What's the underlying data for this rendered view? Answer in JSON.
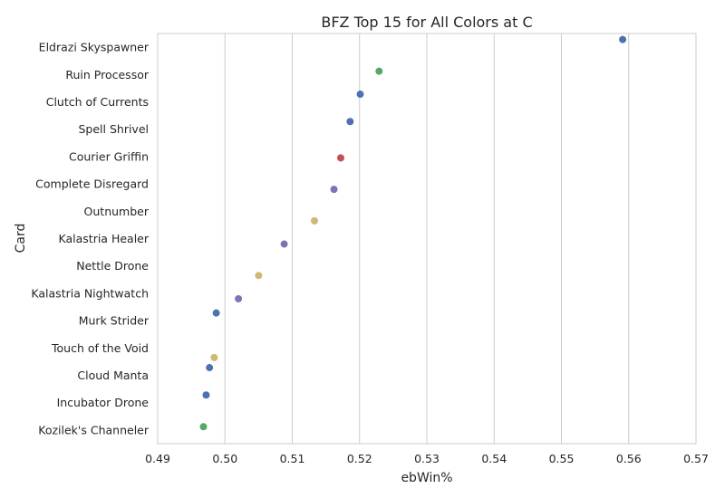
{
  "chart_data": {
    "type": "scatter",
    "title": "BFZ Top 15 for All Colors at C",
    "xlabel": "ebWin%",
    "ylabel": "Card",
    "xlim": [
      0.49,
      0.57
    ],
    "xticks": [
      "0.49",
      "0.50",
      "0.51",
      "0.52",
      "0.53",
      "0.54",
      "0.55",
      "0.56",
      "0.57"
    ],
    "grid": "vertical",
    "colors": {
      "blue": "#4c72b0",
      "green": "#55a868",
      "red": "#c44e52",
      "purple": "#8172b2",
      "yellow": "#ccb974"
    },
    "points": [
      {
        "card": "Eldrazi Skyspawner",
        "value": 0.5591,
        "color": "blue",
        "offset": -0.28
      },
      {
        "card": "Ruin Processor",
        "value": 0.5229,
        "color": "green",
        "offset": -0.12
      },
      {
        "card": "Clutch of Currents",
        "value": 0.5201,
        "color": "blue",
        "offset": -0.28
      },
      {
        "card": "Spell Shrivel",
        "value": 0.5186,
        "color": "blue",
        "offset": -0.28
      },
      {
        "card": "Courier Griffin",
        "value": 0.5172,
        "color": "red",
        "offset": 0.05
      },
      {
        "card": "Complete Disregard",
        "value": 0.5162,
        "color": "purple",
        "offset": 0.2
      },
      {
        "card": "Outnumber",
        "value": 0.5133,
        "color": "yellow",
        "offset": 0.35
      },
      {
        "card": "Kalastria Healer",
        "value": 0.5088,
        "color": "purple",
        "offset": 0.2
      },
      {
        "card": "Nettle Drone",
        "value": 0.505,
        "color": "yellow",
        "offset": 0.35
      },
      {
        "card": "Kalastria Nightwatch",
        "value": 0.502,
        "color": "purple",
        "offset": 0.2
      },
      {
        "card": "Murk Strider",
        "value": 0.4987,
        "color": "blue",
        "offset": -0.28
      },
      {
        "card": "Touch of the Void",
        "value": 0.4984,
        "color": "yellow",
        "offset": 0.35
      },
      {
        "card": "Cloud Manta",
        "value": 0.4977,
        "color": "blue",
        "offset": -0.28
      },
      {
        "card": "Incubator Drone",
        "value": 0.4972,
        "color": "blue",
        "offset": -0.28
      },
      {
        "card": "Kozilek's Channeler",
        "value": 0.4968,
        "color": "green",
        "offset": -0.12
      }
    ]
  }
}
